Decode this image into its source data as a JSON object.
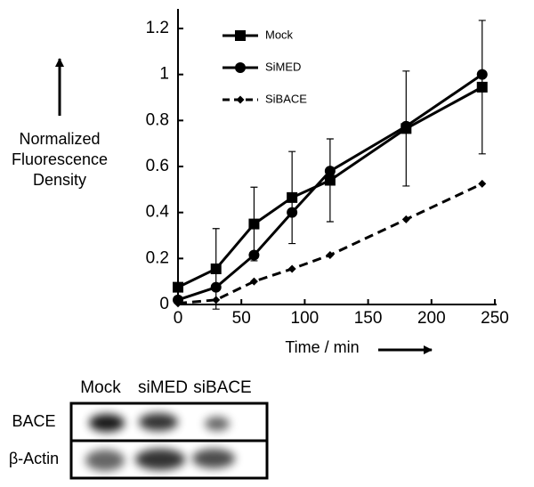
{
  "chart_data": {
    "type": "line",
    "x_label": "Time / min",
    "y_label": [
      "Normalized",
      "Fluorescence",
      "Density"
    ],
    "x": [
      0,
      30,
      60,
      90,
      120,
      180,
      240
    ],
    "xlim": [
      0,
      250
    ],
    "xticks": [
      0,
      50,
      100,
      150,
      200,
      250
    ],
    "ylim": [
      0,
      1.2
    ],
    "yticks": [
      0,
      0.2,
      0.4,
      0.6,
      0.8,
      1,
      1.2
    ],
    "grid": false,
    "legend": "upper left",
    "series": [
      {
        "name": "Mock",
        "color": "#000000",
        "marker": "square",
        "dash": false,
        "values": [
          0.075,
          0.155,
          0.35,
          0.465,
          0.54,
          0.765,
          0.945
        ],
        "errors": [
          0,
          0.175,
          0.16,
          0.2,
          0.18,
          0.25,
          0.29
        ]
      },
      {
        "name": "SiMED",
        "color": "#000000",
        "marker": "circle",
        "dash": false,
        "values": [
          0.02,
          0.075,
          0.215,
          0.4,
          0.58,
          0.775,
          1.0
        ]
      },
      {
        "name": "SiBACE",
        "color": "#000000",
        "marker": "diamond",
        "dash": true,
        "values": [
          0.005,
          0.02,
          0.1,
          0.155,
          0.215,
          0.37,
          0.525
        ]
      }
    ]
  },
  "blot": {
    "lanes": [
      "Mock",
      "siMED",
      "siBACE"
    ],
    "rows": [
      "BACE",
      "β-Actin"
    ]
  }
}
